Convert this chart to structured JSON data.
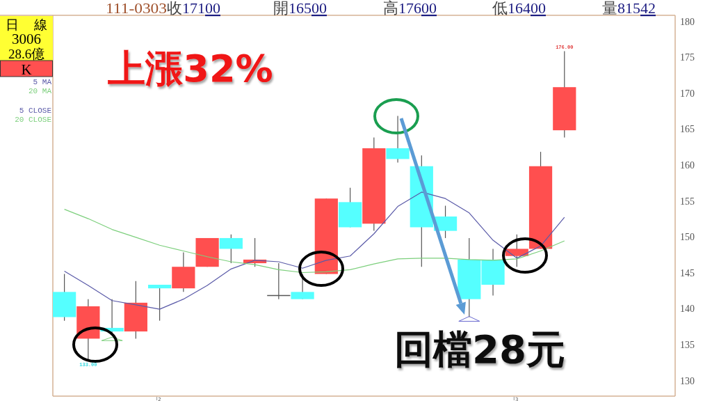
{
  "chart_data": {
    "type": "candlestick",
    "categories": [
      null,
      null,
      null,
      null,
      "2",
      null,
      null,
      null,
      null,
      null,
      null,
      null,
      null,
      null,
      null,
      null,
      null,
      null,
      null,
      "3",
      null,
      null
    ],
    "ohlc": [
      [
        142.5,
        145,
        138.5,
        139
      ],
      [
        136,
        141.5,
        133,
        140.5
      ],
      [
        137.5,
        141.5,
        136.5,
        137
      ],
      [
        137,
        144,
        136,
        141
      ],
      [
        143.5,
        143.5,
        138.5,
        143
      ],
      [
        143,
        148,
        142.5,
        146
      ],
      [
        146,
        150,
        146,
        150
      ],
      [
        150,
        150.5,
        146.5,
        148.5
      ],
      [
        146.5,
        150,
        146,
        147
      ],
      [
        142,
        146.5,
        141.5,
        142
      ],
      [
        142.5,
        145,
        141.5,
        141.5
      ],
      [
        145,
        155.5,
        145,
        155.5
      ],
      [
        155,
        157,
        151.5,
        151.5
      ],
      [
        152,
        164,
        151,
        162.5
      ],
      [
        162.5,
        167,
        160.5,
        161
      ],
      [
        160,
        161.5,
        146,
        151.5
      ],
      [
        153,
        154.5,
        150,
        151
      ],
      [
        147,
        150,
        139,
        141.5
      ],
      [
        147,
        148.5,
        142,
        143.5
      ],
      [
        147.5,
        150.5,
        146,
        148.5
      ],
      [
        148.5,
        162,
        148.5,
        160
      ],
      [
        165,
        176,
        164,
        171
      ]
    ],
    "colors": [
      "#55ffff",
      "#ff4f4f",
      "#55ffff",
      "#ff4f4f",
      "#55ffff",
      "#ff4f4f",
      "#ff4f4f",
      "#55ffff",
      "#ff4f4f",
      "#555555",
      "#55ffff",
      "#ff4f4f",
      "#55ffff",
      "#ff4f4f",
      "#55ffff",
      "#55ffff",
      "#55ffff",
      "#55ffff",
      "#55ffff",
      "#ff4f4f",
      "#ff4f4f",
      "#ff4f4f"
    ],
    "series": [
      {
        "name": "5 MA",
        "type": "line",
        "color": "#5a5aa8",
        "values": [
          145.4,
          143.4,
          141.3,
          140.7,
          140.1,
          141.5,
          143.4,
          145.7,
          146.9,
          146.7,
          145.8,
          146.9,
          147.5,
          150.6,
          154.4,
          156.4,
          155.5,
          153.5,
          149.7,
          147.2,
          148.9,
          152.9
        ]
      },
      {
        "name": "20 MA",
        "type": "line",
        "color": "#7ccf7c",
        "values": [
          154.0,
          152.7,
          151.2,
          150.1,
          149.0,
          148.2,
          147.4,
          146.7,
          146.3,
          145.6,
          145.2,
          145.3,
          145.6,
          146.4,
          147.1,
          147.2,
          147.2,
          147.0,
          146.9,
          147.1,
          148.2,
          149.6
        ]
      }
    ],
    "ylim": [
      128,
      181
    ],
    "yticks": [
      130,
      135,
      140,
      145,
      150,
      155,
      160,
      165,
      170,
      175,
      180
    ],
    "legend": "left",
    "annotations": [
      "111-0303",
      "收17100",
      "開16500",
      "高17600",
      "低16400",
      "量81542",
      "日線",
      "3006",
      "28.6億",
      "K",
      "5 CLOSE",
      "20 CLOSE",
      "上漲32%",
      "回檔28元",
      {
        "text": "176.00",
        "y": 176
      },
      {
        "text": "133.00",
        "y": 133
      }
    ]
  }
}
